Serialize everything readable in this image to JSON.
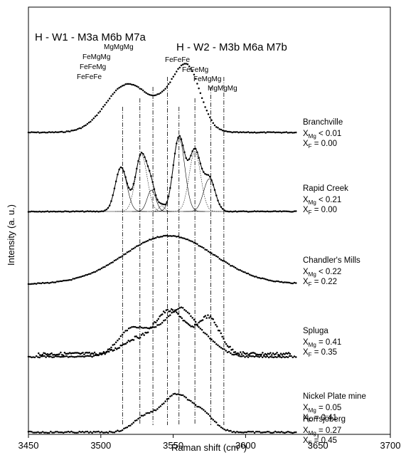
{
  "chart_data": {
    "type": "line",
    "xlabel": "Raman shift (cm",
    "xlabel_sup": "-1",
    "xlabel_close": ")",
    "ylabel": "Intensity (a. u.)",
    "xlim": [
      3450,
      3700
    ],
    "xticks": [
      "3450",
      "3500",
      "3550",
      "3600",
      "3650",
      "3700"
    ],
    "grid": false,
    "group_titles": [
      {
        "text": "H - W1 - M3a M6b M7a"
      },
      {
        "text": "H - W2 - M3b M6a M7b"
      }
    ],
    "reference_lines": [
      {
        "x": 3515,
        "label": "FeFeFe"
      },
      {
        "x": 3527,
        "label": "FeFeMg"
      },
      {
        "x": 3536,
        "label": "FeMgMg"
      },
      {
        "x": 3546,
        "label": "MgMgMg"
      },
      {
        "x": 3554,
        "label": "FeFeFe"
      },
      {
        "x": 3565,
        "label": "FeFeMg"
      },
      {
        "x": 3576,
        "label": "FeMgMg"
      },
      {
        "x": 3585,
        "label": "MgMgMg"
      }
    ],
    "series": [
      {
        "name": "Branchville",
        "x_mg": "X",
        "x_mg_sub": "Mg",
        "x_mg_val": " < 0.01",
        "x_f": "X",
        "x_f_sub": "F",
        "x_f_val": " = 0.00",
        "x_range": [
          3450,
          3635
        ],
        "peaks": [
          [
            3516,
            14,
            46
          ],
          [
            3529,
            18,
            27
          ],
          [
            3560,
            9,
            85
          ],
          [
            3546,
            8,
            18
          ]
        ]
      },
      {
        "name": "Rapid Creek",
        "x_mg": "X",
        "x_mg_sub": "Mg",
        "x_mg_val": " < 0.21",
        "x_f": "X",
        "x_f_sub": "F",
        "x_f_val": " = 0.00",
        "x_range": [
          3450,
          3635
        ],
        "peaks": [
          [
            3514,
            4,
            62
          ],
          [
            3528,
            4,
            80
          ],
          [
            3535,
            3,
            30
          ],
          [
            3542,
            2,
            8
          ],
          [
            3554,
            4,
            104
          ],
          [
            3565,
            4,
            84
          ],
          [
            3575,
            4,
            46
          ]
        ],
        "components": true
      },
      {
        "name": "Chandler's Mills",
        "x_mg": "X",
        "x_mg_sub": "Mg",
        "x_mg_val": " < 0.22",
        "x_f": "X",
        "x_f_sub": "F",
        "x_f_val": " = 0.22",
        "x_range": [
          3450,
          3635
        ],
        "peaks": [
          [
            3547,
            31,
            68
          ]
        ]
      },
      {
        "name": "Spluga",
        "x_mg": "X",
        "x_mg_sub": "Mg",
        "x_mg_val": " = 0.41",
        "x_f": "X",
        "x_f_sub": "F",
        "x_f_val": " =  0.35",
        "x_range": [
          3457,
          3631
        ],
        "peaks": [
          [
            3523,
            9,
            19
          ],
          [
            3545,
            9,
            55
          ],
          [
            3556,
            6,
            20
          ],
          [
            3574,
            8,
            52
          ]
        ]
      },
      {
        "name": "Nickel Plate mine",
        "x_mg": "X",
        "x_mg_sub": "Mg",
        "x_mg_val": " = 0.05",
        "x_f": "X",
        "x_f_sub": "F",
        "x_f_val": " = 0.41",
        "x_range": [
          3450,
          3635
        ],
        "peaks": [
          [
            3522,
            10,
            40
          ],
          [
            3555,
            10,
            66
          ],
          [
            3575,
            9,
            18
          ],
          [
            3538,
            7,
            16
          ]
        ]
      },
      {
        "name": "Horrsjöberg",
        "x_mg": "X",
        "x_mg_sub": "Mg",
        "x_mg_val": " = 0.27",
        "x_f": "X",
        "x_f_sub": "F",
        "x_f_val": " = 0.45",
        "x_range": [
          3450,
          3635
        ],
        "peaks": [
          [
            3530,
            8,
            20
          ],
          [
            3552,
            10,
            52
          ],
          [
            3571,
            8,
            22
          ]
        ]
      }
    ]
  }
}
